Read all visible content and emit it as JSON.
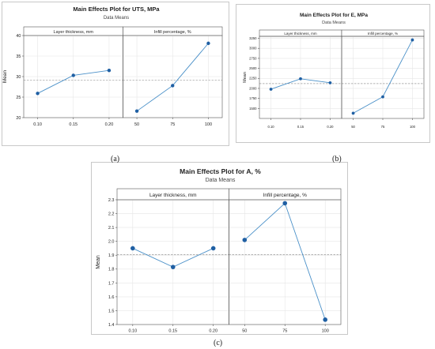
{
  "chart_data": [
    {
      "id": "a",
      "type": "line",
      "title": "Main Effects Plot for UTS, MPa",
      "subtitle": "Data Means",
      "ylabel": "Mean",
      "ylim": [
        20,
        40
      ],
      "yticks": [
        "20",
        "25",
        "30",
        "35",
        "40"
      ],
      "grand_mean": 29.1,
      "grid": true,
      "color": "#4a90c8",
      "panels": [
        {
          "name": "Layer thickness, mm",
          "categories": [
            "0.10",
            "0.15",
            "0.20"
          ],
          "values": [
            25.9,
            30.3,
            31.5
          ]
        },
        {
          "name": "Infill percentage, %",
          "categories": [
            "50",
            "75",
            "100"
          ],
          "values": [
            21.6,
            27.8,
            38.1
          ]
        }
      ],
      "caption": "(a)"
    },
    {
      "id": "b",
      "type": "line",
      "title": "Main Effects Plot for E, MPa",
      "subtitle": "Data Means",
      "ylabel": "Mean",
      "ylim": [
        1250,
        3300
      ],
      "yticks": [
        "1500",
        "1750",
        "2000",
        "2250",
        "2500",
        "2750",
        "3000",
        "3250"
      ],
      "grand_mean": 2120,
      "grid": true,
      "color": "#4a90c8",
      "panels": [
        {
          "name": "Layer thickness, mm",
          "categories": [
            "0.10",
            "0.15",
            "0.20"
          ],
          "values": [
            1980,
            2240,
            2140
          ]
        },
        {
          "name": "Infill percentage, %",
          "categories": [
            "50",
            "75",
            "100"
          ],
          "values": [
            1380,
            1790,
            3210
          ]
        }
      ],
      "caption": "(b)"
    },
    {
      "id": "c",
      "type": "line",
      "title": "Main Effects Plot for A, %",
      "subtitle": "Data Means",
      "ylabel": "Mean",
      "ylim": [
        1.4,
        2.3
      ],
      "yticks": [
        "1.4",
        "1.5",
        "1.6",
        "1.7",
        "1.8",
        "1.9",
        "2.0",
        "2.1",
        "2.2",
        "2.3"
      ],
      "grand_mean": 1.905,
      "grid": true,
      "color": "#4a90c8",
      "panels": [
        {
          "name": "Layer thickness, mm",
          "categories": [
            "0.10",
            "0.15",
            "0.20"
          ],
          "values": [
            1.95,
            1.815,
            1.95
          ]
        },
        {
          "name": "Infill percentage, %",
          "categories": [
            "50",
            "75",
            "100"
          ],
          "values": [
            2.01,
            2.275,
            1.435
          ]
        }
      ],
      "caption": "(c)"
    }
  ]
}
